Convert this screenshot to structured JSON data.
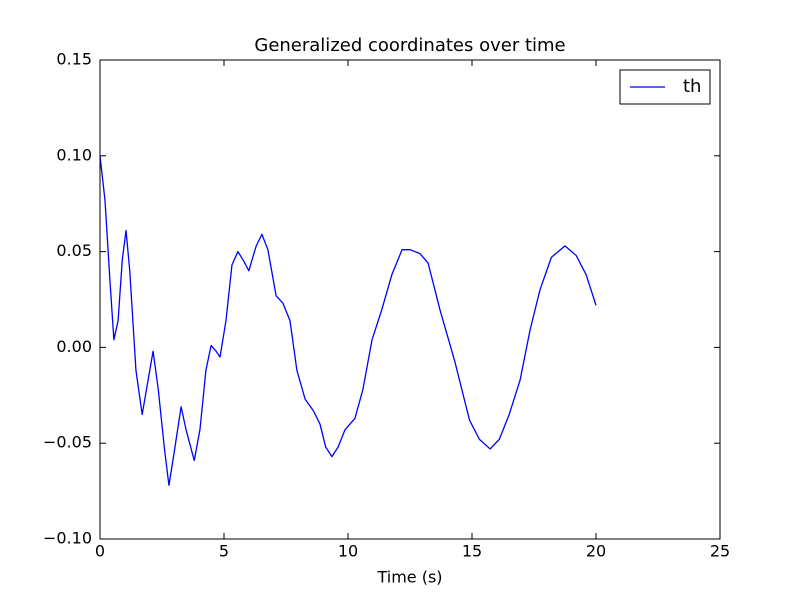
{
  "chart_data": {
    "type": "line",
    "title": "Generalized coordinates over time",
    "x_label": "Time (s)",
    "x": [
      0,
      0.2,
      0.4,
      0.56,
      0.73,
      0.9,
      1.05,
      1.2,
      1.45,
      1.7,
      1.9,
      2.14,
      2.35,
      2.6,
      2.78,
      3.0,
      3.27,
      3.47,
      3.8,
      4.03,
      4.27,
      4.48,
      4.68,
      4.84,
      5.08,
      5.32,
      5.56,
      5.8,
      6.0,
      6.3,
      6.53,
      6.77,
      7.1,
      7.38,
      7.66,
      7.94,
      8.27,
      8.6,
      8.87,
      9.1,
      9.35,
      9.6,
      9.88,
      10.28,
      10.6,
      10.97,
      11.37,
      11.77,
      12.18,
      12.5,
      12.9,
      13.23,
      13.7,
      14.3,
      14.9,
      15.3,
      15.73,
      16.1,
      16.5,
      16.94,
      17.34,
      17.74,
      18.2,
      18.75,
      19.2,
      19.6,
      20.0
    ],
    "series": [
      {
        "name": "th",
        "color": "#0000ff",
        "values": [
          0.1,
          0.077,
          0.035,
          0.004,
          0.014,
          0.046,
          0.061,
          0.04,
          -0.012,
          -0.035,
          -0.02,
          -0.002,
          -0.022,
          -0.053,
          -0.072,
          -0.054,
          -0.031,
          -0.043,
          -0.059,
          -0.043,
          -0.012,
          0.001,
          -0.002,
          -0.005,
          0.014,
          0.043,
          0.05,
          0.045,
          0.04,
          0.053,
          0.059,
          0.051,
          0.027,
          0.023,
          0.014,
          -0.012,
          -0.027,
          -0.033,
          -0.04,
          -0.052,
          -0.057,
          -0.052,
          -0.043,
          -0.037,
          -0.022,
          0.004,
          0.02,
          0.038,
          0.051,
          0.051,
          0.049,
          0.044,
          0.02,
          -0.007,
          -0.038,
          -0.048,
          -0.053,
          -0.048,
          -0.035,
          -0.017,
          0.009,
          0.03,
          0.047,
          0.053,
          0.048,
          0.038,
          0.022
        ]
      }
    ],
    "xlim": [
      0,
      25
    ],
    "xticks": [
      0,
      5,
      10,
      15,
      20,
      25
    ],
    "ylim": [
      -0.1,
      0.15
    ],
    "yticks": [
      {
        "value": -0.1,
        "label": "−0.10"
      },
      {
        "value": -0.05,
        "label": "−0.05"
      },
      {
        "value": 0,
        "label": "0.00"
      },
      0.05,
      {
        "value": 0.1,
        "label": "0.10"
      },
      0.15
    ],
    "legend": "upper right",
    "grid": false
  }
}
